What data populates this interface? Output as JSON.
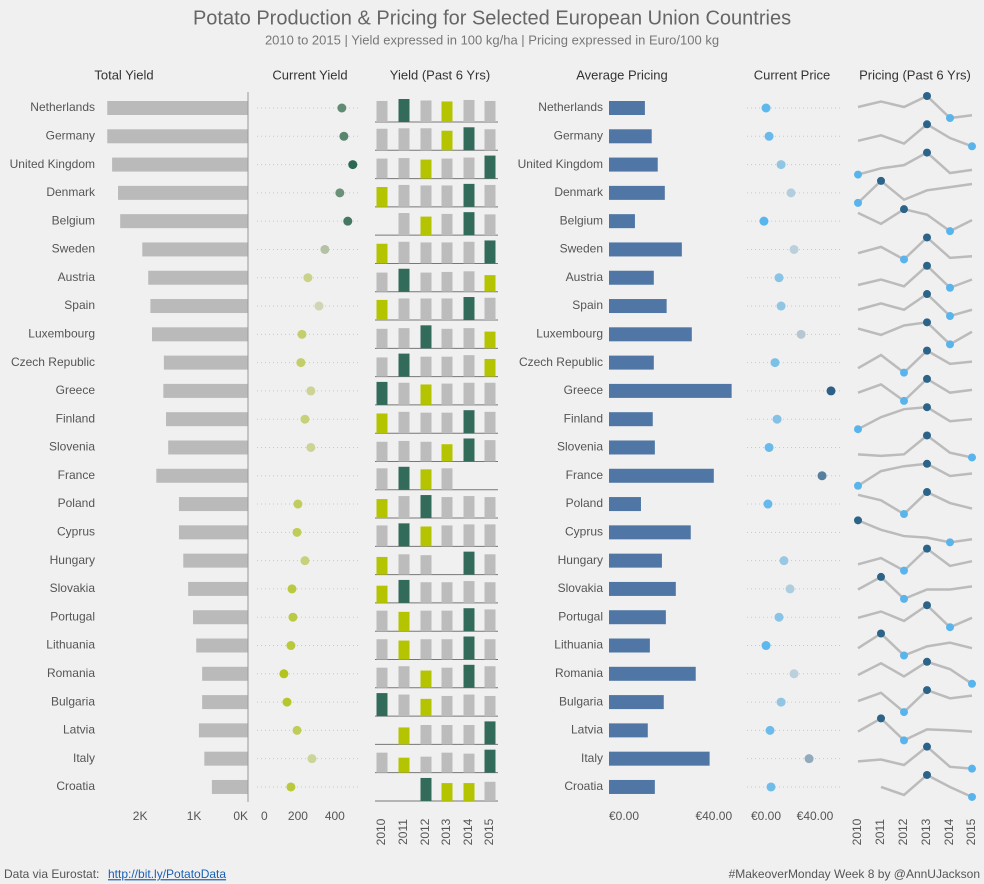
{
  "title": "Potato Production & Pricing for Selected European Union Countries",
  "subtitle": "2010 to 2015 | Yield expressed in 100 kg/ha | Pricing expressed in Euro/100 kg",
  "chart_data": [
    {
      "type": "bar",
      "orientation": "horizontal",
      "x_reversed": true,
      "title": "Total Yield",
      "categories": [
        "Netherlands",
        "Germany",
        "United Kingdom",
        "Denmark",
        "Belgium",
        "Sweden",
        "Austria",
        "Spain",
        "Luxembourg",
        "Czech Republic",
        "Greece",
        "Finland",
        "Slovenia",
        "France",
        "Poland",
        "Cyprus",
        "Hungary",
        "Slovakia",
        "Portugal",
        "Lithuania",
        "Romania",
        "Bulgaria",
        "Latvia",
        "Italy",
        "Croatia"
      ],
      "values": [
        2610,
        2610,
        2520,
        2410,
        2370,
        1960,
        1850,
        1810,
        1780,
        1560,
        1570,
        1520,
        1480,
        1700,
        1280,
        1280,
        1200,
        1110,
        1020,
        960,
        850,
        850,
        910,
        810,
        670
      ],
      "color": "#bababa",
      "xlim": [
        0,
        2800
      ],
      "xticks": [
        {
          "value": 2000,
          "label": "2K"
        },
        {
          "value": 1000,
          "label": "1K"
        },
        {
          "value": 0,
          "label": "0K"
        }
      ]
    },
    {
      "type": "dot",
      "title": "Current Yield",
      "values": [
        438,
        449,
        497,
        427,
        470,
        346,
        254,
        314,
        222,
        216,
        270,
        238,
        270,
        null,
        200,
        195,
        238,
        168,
        173,
        162,
        124,
        141,
        195,
        276,
        162
      ],
      "colors": {
        "low": "#b3c51d",
        "mid": "#d3d7b6",
        "high": "#2d6855"
      },
      "xlim": [
        0,
        520
      ],
      "xticks": [
        0,
        200,
        400
      ]
    },
    {
      "type": "spark_bar",
      "title": "Yield (Past 6 Yrs)",
      "x": [
        "2010",
        "2011",
        "2012",
        "2013",
        "2014",
        "2015"
      ],
      "colors": {
        "max": "#336b5b",
        "min": "#b5c400",
        "other": "#bcbcbc"
      },
      "series": [
        {
          "values": [
            430,
            470,
            440,
            420,
            450,
            430
          ]
        },
        {
          "values": [
            440,
            450,
            450,
            400,
            470,
            430
          ]
        },
        {
          "values": [
            400,
            410,
            380,
            400,
            420,
            460
          ]
        },
        {
          "values": [
            380,
            420,
            410,
            410,
            440,
            420
          ]
        },
        {
          "values": [
            null,
            500,
            420,
            480,
            520,
            470
          ]
        },
        {
          "values": [
            300,
            330,
            320,
            320,
            330,
            350
          ]
        },
        {
          "values": [
            300,
            360,
            300,
            310,
            320,
            260
          ]
        },
        {
          "values": [
            280,
            300,
            300,
            300,
            320,
            310
          ]
        },
        {
          "values": [
            280,
            290,
            330,
            280,
            290,
            240
          ]
        },
        {
          "values": [
            250,
            300,
            260,
            260,
            280,
            230
          ]
        },
        {
          "values": [
            270,
            260,
            240,
            250,
            260,
            260
          ]
        },
        {
          "values": [
            240,
            260,
            250,
            250,
            280,
            260
          ]
        },
        {
          "values": [
            240,
            250,
            240,
            210,
            280,
            260
          ]
        },
        {
          "values": [
            420,
            450,
            400,
            420,
            null,
            null
          ]
        },
        {
          "values": [
            190,
            220,
            230,
            210,
            220,
            210
          ]
        },
        {
          "values": [
            200,
            220,
            190,
            200,
            210,
            210
          ]
        },
        {
          "values": [
            200,
            230,
            220,
            null,
            260,
            230
          ]
        },
        {
          "values": [
            150,
            200,
            180,
            180,
            190,
            180
          ]
        },
        {
          "values": [
            170,
            160,
            170,
            170,
            190,
            180
          ]
        },
        {
          "values": [
            150,
            140,
            150,
            150,
            170,
            150
          ]
        },
        {
          "values": [
            140,
            150,
            120,
            140,
            160,
            150
          ]
        },
        {
          "values": [
            160,
            150,
            120,
            140,
            150,
            140
          ]
        },
        {
          "values": [
            null,
            140,
            160,
            160,
            160,
            190
          ]
        },
        {
          "values": [
            200,
            150,
            160,
            200,
            190,
            230
          ]
        },
        {
          "values": [
            null,
            null,
            180,
            140,
            140,
            150
          ]
        }
      ]
    },
    {
      "type": "bar",
      "orientation": "horizontal",
      "x_reversed": false,
      "title": "Average Pricing",
      "categories": [
        "Netherlands",
        "Germany",
        "United Kingdom",
        "Denmark",
        "Belgium",
        "Sweden",
        "Austria",
        "Spain",
        "Luxembourg",
        "Czech Republic",
        "Greece",
        "Finland",
        "Slovenia",
        "France",
        "Poland",
        "Cyprus",
        "Hungary",
        "Slovakia",
        "Portugal",
        "Lithuania",
        "Romania",
        "Bulgaria",
        "Latvia",
        "Italy",
        "Croatia"
      ],
      "values": [
        13.7,
        16.3,
        18.6,
        21.3,
        9.9,
        27.8,
        17.1,
        22,
        31.6,
        17.1,
        46.8,
        16.7,
        17.5,
        40,
        12.2,
        31.2,
        20.2,
        25.5,
        21.7,
        15.6,
        33.1,
        20.9,
        14.8,
        38.4,
        17.5
      ],
      "color": "#4f76a4",
      "xlim": [
        0,
        50
      ],
      "xticks": [
        {
          "value": 0,
          "label": "€0.00"
        },
        {
          "value": 40,
          "label": "€40.00"
        }
      ]
    },
    {
      "type": "dot",
      "title": "Current Price",
      "values": [
        9.4,
        11.3,
        18.8,
        25,
        8.1,
        26.9,
        17.5,
        18.8,
        31.3,
        15,
        50,
        16.3,
        11.3,
        44.4,
        10.6,
        null,
        20.6,
        24.4,
        17.5,
        9.4,
        26.9,
        18.8,
        11.9,
        36.3,
        12.5
      ],
      "colors": {
        "low": "#58b6ee",
        "mid": "#c6d3da",
        "high": "#2d5f87"
      },
      "xlim": [
        0,
        55
      ],
      "xticks": [
        {
          "value": 0,
          "label": "€0.00"
        },
        {
          "value": 40,
          "label": "€40.00"
        }
      ]
    },
    {
      "type": "spark_line",
      "title": "Pricing (Past 6 Yrs)",
      "x": [
        "2010",
        "2011",
        "2012",
        "2013",
        "2014",
        "2015"
      ],
      "colors": {
        "line": "#bbbbbb",
        "max": "#2c6388",
        "min": "#5ab4ec"
      },
      "series": [
        {
          "values": [
            14,
            16,
            14,
            18,
            10,
            11
          ]
        },
        {
          "values": [
            14,
            16,
            13,
            20,
            15,
            12
          ]
        },
        {
          "values": [
            12,
            14,
            15,
            19,
            12.5,
            13.5
          ]
        },
        {
          "values": [
            17,
            24,
            18,
            21,
            22,
            23
          ]
        },
        {
          "values": [
            9,
            6,
            10,
            8.5,
            4,
            7
          ]
        },
        {
          "values": [
            26,
            28,
            24,
            31,
            24.5,
            25
          ]
        },
        {
          "values": [
            15,
            17,
            14.5,
            22,
            14,
            17
          ]
        },
        {
          "values": [
            20,
            22,
            20,
            25,
            18,
            20
          ]
        },
        {
          "values": [
            32,
            30,
            33,
            34,
            27,
            31
          ]
        },
        {
          "values": [
            16,
            19,
            15,
            20,
            17,
            17.5
          ]
        },
        {
          "values": [
            45,
            48,
            42,
            50,
            45,
            46
          ]
        },
        {
          "values": [
            14,
            17,
            19,
            19.5,
            16,
            16.5
          ]
        },
        {
          "values": [
            14,
            13.5,
            14,
            20,
            14.5,
            13
          ]
        },
        {
          "values": [
            36,
            42,
            44,
            45,
            40,
            41
          ]
        },
        {
          "values": [
            12.5,
            11.5,
            9,
            13,
            11,
            10
          ]
        },
        {
          "values": [
            33,
            30,
            28,
            27.5,
            26,
            27
          ]
        },
        {
          "values": [
            19,
            21,
            17,
            24,
            18.5,
            20
          ]
        },
        {
          "values": [
            24,
            28,
            21,
            24,
            24,
            25
          ]
        },
        {
          "values": [
            20,
            22,
            19,
            24,
            17,
            20
          ]
        },
        {
          "values": [
            15,
            19,
            13,
            15.5,
            16.5,
            15
          ]
        },
        {
          "values": [
            31,
            35,
            30.5,
            35.5,
            33,
            28
          ]
        },
        {
          "values": [
            20,
            23,
            16,
            24,
            21,
            22
          ]
        },
        {
          "values": [
            14,
            17,
            12,
            14.5,
            14.3,
            14
          ]
        },
        {
          "values": [
            37,
            37.5,
            36,
            41,
            35.5,
            35
          ]
        },
        {
          "values": [
            null,
            17,
            15,
            20,
            17,
            14.5
          ]
        }
      ]
    }
  ],
  "footer": {
    "source": "Data via Eurostat:",
    "link": "http://bit.ly/PotatoData",
    "credit": "#MakeoverMonday Week 8 by @AnnUJackson"
  }
}
